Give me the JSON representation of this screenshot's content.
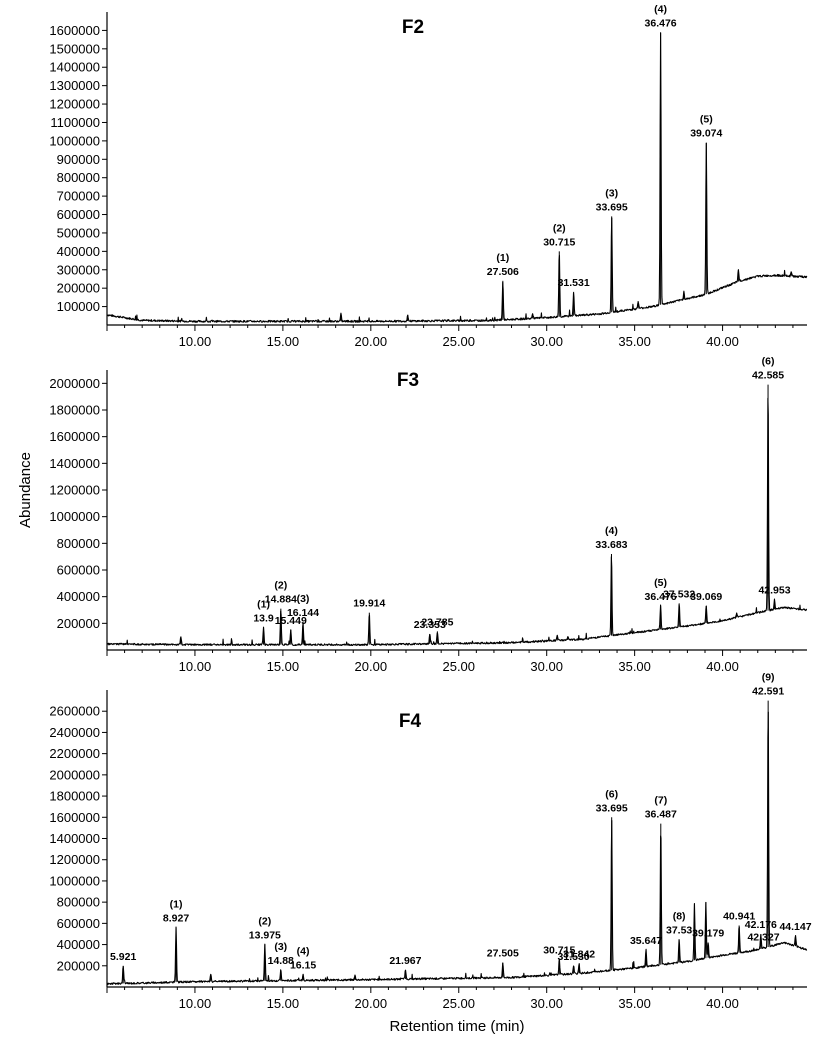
{
  "figure": {
    "ylabel": "Abundance",
    "xlabel": "Retention time (min)"
  },
  "chart_data": [
    {
      "type": "line",
      "title": "F2",
      "x_range": [
        5,
        44.8
      ],
      "ylim": [
        0,
        1700000
      ],
      "xticks": [
        10,
        15,
        20,
        25,
        30,
        35,
        40
      ],
      "xtick_labels": [
        "10.00",
        "15.00",
        "20.00",
        "25.00",
        "30.00",
        "35.00",
        "40.00"
      ],
      "yticks": [
        100000,
        200000,
        300000,
        400000,
        500000,
        600000,
        700000,
        800000,
        900000,
        1000000,
        1100000,
        1200000,
        1300000,
        1400000,
        1500000,
        1600000
      ],
      "ytick_labels": [
        "100000",
        "200000",
        "300000",
        "400000",
        "500000",
        "600000",
        "700000",
        "800000",
        "900000",
        "1000000",
        "1100000",
        "1200000",
        "1300000",
        "1400000",
        "1500000",
        "1600000"
      ],
      "baseline": [
        [
          5,
          55000
        ],
        [
          7,
          25000
        ],
        [
          10,
          20000
        ],
        [
          20,
          20000
        ],
        [
          27,
          25000
        ],
        [
          30,
          40000
        ],
        [
          33,
          60000
        ],
        [
          36,
          100000
        ],
        [
          39,
          165000
        ],
        [
          41,
          240000
        ],
        [
          42,
          265000
        ],
        [
          43,
          270000
        ],
        [
          44.8,
          260000
        ]
      ],
      "peaks": [
        {
          "rt": 18.3,
          "height": 60000
        },
        {
          "rt": 22.1,
          "height": 55000
        },
        {
          "rt": 27.506,
          "height": 240000,
          "tag": "(1)",
          "label": "27.506"
        },
        {
          "rt": 29.2,
          "height": 60000
        },
        {
          "rt": 30.715,
          "height": 400000,
          "tag": "(2)",
          "label": "30.715"
        },
        {
          "rt": 31.531,
          "height": 180000,
          "label": "31.531"
        },
        {
          "rt": 33.695,
          "height": 590000,
          "tag": "(3)",
          "label": "33.695"
        },
        {
          "rt": 35.2,
          "height": 130000
        },
        {
          "rt": 36.476,
          "height": 1590000,
          "tag": "(4)",
          "label": "36.476"
        },
        {
          "rt": 37.8,
          "height": 180000
        },
        {
          "rt": 39.074,
          "height": 990000,
          "tag": "(5)",
          "label": "39.074"
        },
        {
          "rt": 40.9,
          "height": 300000
        },
        {
          "rt": 43.9,
          "height": 290000
        }
      ]
    },
    {
      "type": "line",
      "title": "F3",
      "x_range": [
        5,
        44.8
      ],
      "ylim": [
        0,
        2100000
      ],
      "xticks": [
        10,
        15,
        20,
        25,
        30,
        35,
        40
      ],
      "xtick_labels": [
        "10.00",
        "15.00",
        "20.00",
        "25.00",
        "30.00",
        "35.00",
        "40.00"
      ],
      "yticks": [
        200000,
        400000,
        600000,
        800000,
        1000000,
        1200000,
        1400000,
        1600000,
        1800000,
        2000000
      ],
      "ytick_labels": [
        "200000",
        "400000",
        "600000",
        "800000",
        "1000000",
        "1200000",
        "1400000",
        "1600000",
        "1800000",
        "2000000"
      ],
      "baseline": [
        [
          5,
          45000
        ],
        [
          10,
          40000
        ],
        [
          20,
          40000
        ],
        [
          28,
          55000
        ],
        [
          32,
          80000
        ],
        [
          35,
          130000
        ],
        [
          38,
          180000
        ],
        [
          40,
          220000
        ],
        [
          42,
          280000
        ],
        [
          43.5,
          320000
        ],
        [
          44.8,
          300000
        ]
      ],
      "peaks": [
        {
          "rt": 9.2,
          "height": 100000
        },
        {
          "rt": 13.9,
          "height": 170000,
          "tag": "(1)",
          "label": "13.9"
        },
        {
          "rt": 14.884,
          "height": 310000,
          "tag": "(2)",
          "label": "14.884"
        },
        {
          "rt": 15.449,
          "height": 150000,
          "label": "15.449"
        },
        {
          "rt": 16.144,
          "height": 210000,
          "tag": "(3)",
          "label": "16.144"
        },
        {
          "rt": 19.914,
          "height": 280000,
          "label": "19.914"
        },
        {
          "rt": 23.353,
          "height": 120000,
          "label": "23.353"
        },
        {
          "rt": 23.785,
          "height": 140000,
          "label": "23.785"
        },
        {
          "rt": 30.6,
          "height": 110000
        },
        {
          "rt": 31.2,
          "height": 100000
        },
        {
          "rt": 33.683,
          "height": 720000,
          "tag": "(4)",
          "label": "33.683"
        },
        {
          "rt": 36.476,
          "height": 330000,
          "tag": "(5)",
          "label": "36.476"
        },
        {
          "rt": 37.532,
          "height": 350000,
          "label": "37.532"
        },
        {
          "rt": 39.069,
          "height": 330000,
          "label": "39.069"
        },
        {
          "rt": 40.8,
          "height": 280000
        },
        {
          "rt": 42.585,
          "height": 1990000,
          "tag": "(6)",
          "label": "42.585"
        },
        {
          "rt": 42.953,
          "height": 380000,
          "label": "42.953"
        }
      ]
    },
    {
      "type": "line",
      "title": "F4",
      "x_range": [
        5,
        44.8
      ],
      "ylim": [
        0,
        2800000
      ],
      "xticks": [
        10,
        15,
        20,
        25,
        30,
        35,
        40
      ],
      "xtick_labels": [
        "10.00",
        "15.00",
        "20.00",
        "25.00",
        "30.00",
        "35.00",
        "40.00"
      ],
      "yticks": [
        200000,
        400000,
        600000,
        800000,
        1000000,
        1200000,
        1400000,
        1600000,
        1800000,
        2000000,
        2200000,
        2400000,
        2600000
      ],
      "ytick_labels": [
        "200000",
        "400000",
        "600000",
        "800000",
        "1000000",
        "1200000",
        "1400000",
        "1600000",
        "1800000",
        "2000000",
        "2200000",
        "2400000",
        "2600000"
      ],
      "baseline": [
        [
          5,
          30000
        ],
        [
          10,
          50000
        ],
        [
          20,
          70000
        ],
        [
          28,
          90000
        ],
        [
          32,
          130000
        ],
        [
          35,
          180000
        ],
        [
          38,
          240000
        ],
        [
          40,
          300000
        ],
        [
          42,
          350000
        ],
        [
          43.5,
          420000
        ],
        [
          44.8,
          350000
        ]
      ],
      "peaks": [
        {
          "rt": 5.921,
          "height": 200000,
          "label": "5.921"
        },
        {
          "rt": 8.927,
          "height": 560000,
          "tag": "(1)",
          "label": "8.927"
        },
        {
          "rt": 10.9,
          "height": 120000
        },
        {
          "rt": 13.975,
          "height": 400000,
          "tag": "(2)",
          "label": "13.975"
        },
        {
          "rt": 14.88,
          "height": 160000,
          "tag": "(3)",
          "label": "14.88"
        },
        {
          "rt": 16.15,
          "height": 120000,
          "tag": "(4)",
          "label": "16.15"
        },
        {
          "rt": 19.1,
          "height": 110000
        },
        {
          "rt": 21.967,
          "height": 160000,
          "label": "21.967"
        },
        {
          "rt": 27.505,
          "height": 230000,
          "label": "27.505"
        },
        {
          "rt": 30.715,
          "height": 260000,
          "label": "30.715"
        },
        {
          "rt": 31.53,
          "height": 200000,
          "label": "31.530"
        },
        {
          "rt": 31.842,
          "height": 220000,
          "label": "31.842"
        },
        {
          "rt": 33.695,
          "height": 1600000,
          "tag": "(6)",
          "label": "33.695"
        },
        {
          "rt": 35.647,
          "height": 350000,
          "label": "35.647"
        },
        {
          "rt": 36.487,
          "height": 1540000,
          "tag": "(7)",
          "label": "36.487"
        },
        {
          "rt": 37.53,
          "height": 450000,
          "tag": "(8)",
          "label": "37.53"
        },
        {
          "rt": 38.4,
          "height": 780000
        },
        {
          "rt": 39.05,
          "height": 800000
        },
        {
          "rt": 39.179,
          "height": 420000,
          "label": "39.179"
        },
        {
          "rt": 40.941,
          "height": 580000,
          "label": "40.941"
        },
        {
          "rt": 42.176,
          "height": 500000,
          "label": "42.176"
        },
        {
          "rt": 42.327,
          "height": 380000,
          "label": "42.327"
        },
        {
          "rt": 42.591,
          "height": 2700000,
          "tag": "(9)",
          "label": "42.591"
        },
        {
          "rt": 44.147,
          "height": 480000,
          "label": "44.147"
        }
      ]
    }
  ]
}
